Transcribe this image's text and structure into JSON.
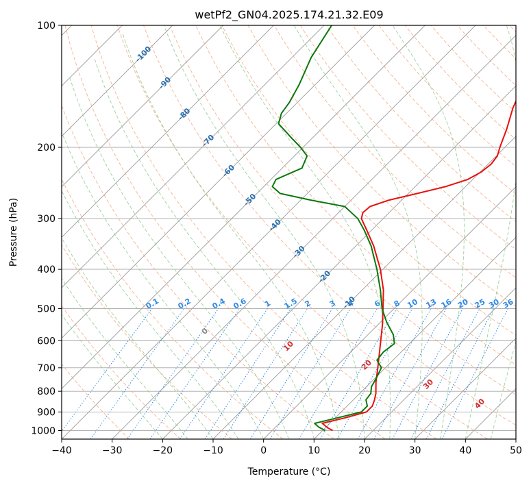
{
  "chart_data": {
    "type": "line",
    "title": "wetPf2_GN04.2025.174.21.32.E09",
    "xlabel": "Temperature (°C)",
    "ylabel": "Pressure (hPa)",
    "xlim": [
      -40,
      50
    ],
    "ylim": [
      1050,
      100
    ],
    "y_scale": "log",
    "skew": "skew-T (isotherms slanted)",
    "grid": true,
    "x_ticks": [
      -40,
      -30,
      -20,
      -10,
      0,
      10,
      20,
      30,
      40,
      50
    ],
    "x_tick_labels": [
      "−40",
      "−30",
      "−20",
      "−10",
      "0",
      "10",
      "20",
      "30",
      "40",
      "50"
    ],
    "y_ticks": [
      100,
      200,
      300,
      400,
      500,
      600,
      700,
      800,
      900,
      1000
    ],
    "y_tick_labels": [
      "100",
      "200",
      "300",
      "400",
      "500",
      "600",
      "700",
      "800",
      "900",
      "1000"
    ],
    "isotherm_labels": [
      {
        "text": "-100",
        "t": -100,
        "p": 118
      },
      {
        "text": "-90",
        "t": -90,
        "p": 139
      },
      {
        "text": "-80",
        "t": -80,
        "p": 166
      },
      {
        "text": "-70",
        "t": -70,
        "p": 193
      },
      {
        "text": "-60",
        "t": -60,
        "p": 229
      },
      {
        "text": "-50",
        "t": -50,
        "p": 270
      },
      {
        "text": "-40",
        "t": -40,
        "p": 312
      },
      {
        "text": "-30",
        "t": -30,
        "p": 363
      },
      {
        "text": "-20",
        "t": -20,
        "p": 418
      },
      {
        "text": "-10",
        "t": -10,
        "p": 484
      }
    ],
    "mixing_ratio_labels": [
      "0.1",
      "0.2",
      "0.4",
      "0.6",
      "1",
      "1.5",
      "2",
      "3",
      "4",
      "6",
      "8",
      "10",
      "13",
      "16",
      "20",
      "25",
      "30",
      "36"
    ],
    "moist_adiabat_labels": [
      "0",
      "10",
      "20",
      "30",
      "40"
    ],
    "series": [
      {
        "name": "",
        "role": "temperature",
        "color": "#e8100c",
        "points": [
          {
            "p": 1000,
            "t": 12
          },
          {
            "p": 985,
            "t": 10.5
          },
          {
            "p": 960,
            "t": 8.5
          },
          {
            "p": 930,
            "t": 12
          },
          {
            "p": 900,
            "t": 15
          },
          {
            "p": 870,
            "t": 15
          },
          {
            "p": 840,
            "t": 14.2
          },
          {
            "p": 810,
            "t": 13.2
          },
          {
            "p": 760,
            "t": 11
          },
          {
            "p": 700,
            "t": 8.5
          },
          {
            "p": 650,
            "t": 6.2
          },
          {
            "p": 600,
            "t": 3.7
          },
          {
            "p": 550,
            "t": 1
          },
          {
            "p": 500,
            "t": -2.2
          },
          {
            "p": 450,
            "t": -5.8
          },
          {
            "p": 400,
            "t": -10.5
          },
          {
            "p": 350,
            "t": -16.5
          },
          {
            "p": 320,
            "t": -21
          },
          {
            "p": 300,
            "t": -24.3
          },
          {
            "p": 290,
            "t": -25.2
          },
          {
            "p": 280,
            "t": -25
          },
          {
            "p": 270,
            "t": -22.5
          },
          {
            "p": 260,
            "t": -18.2
          },
          {
            "p": 250,
            "t": -14
          },
          {
            "p": 240,
            "t": -11
          },
          {
            "p": 230,
            "t": -9.8
          },
          {
            "p": 220,
            "t": -9.4
          },
          {
            "p": 210,
            "t": -9.8
          },
          {
            "p": 200,
            "t": -11
          },
          {
            "p": 180,
            "t": -13.3
          },
          {
            "p": 160,
            "t": -16.2
          },
          {
            "p": 140,
            "t": -18.8
          },
          {
            "p": 120,
            "t": -21.7
          },
          {
            "p": 100,
            "t": -24.1
          }
        ]
      },
      {
        "name": "",
        "role": "dewpoint",
        "color": "#0a780a",
        "points": [
          {
            "p": 1000,
            "t": 10.5
          },
          {
            "p": 980,
            "t": 8.5
          },
          {
            "p": 960,
            "t": 7
          },
          {
            "p": 930,
            "t": 10.5
          },
          {
            "p": 900,
            "t": 14
          },
          {
            "p": 870,
            "t": 14
          },
          {
            "p": 840,
            "t": 12.5
          },
          {
            "p": 810,
            "t": 12.2
          },
          {
            "p": 780,
            "t": 11
          },
          {
            "p": 740,
            "t": 10.2
          },
          {
            "p": 700,
            "t": 9.2
          },
          {
            "p": 670,
            "t": 6.8
          },
          {
            "p": 640,
            "t": 6.5
          },
          {
            "p": 610,
            "t": 7
          },
          {
            "p": 580,
            "t": 5
          },
          {
            "p": 540,
            "t": 1.2
          },
          {
            "p": 500,
            "t": -2.4
          },
          {
            "p": 450,
            "t": -6.4
          },
          {
            "p": 400,
            "t": -11.2
          },
          {
            "p": 350,
            "t": -17
          },
          {
            "p": 320,
            "t": -21.5
          },
          {
            "p": 300,
            "t": -25
          },
          {
            "p": 280,
            "t": -30
          },
          {
            "p": 270,
            "t": -38
          },
          {
            "p": 260,
            "t": -45.4
          },
          {
            "p": 250,
            "t": -48.3
          },
          {
            "p": 240,
            "t": -49
          },
          {
            "p": 225,
            "t": -46.1
          },
          {
            "p": 210,
            "t": -47.5
          },
          {
            "p": 200,
            "t": -50.5
          },
          {
            "p": 190,
            "t": -54
          },
          {
            "p": 175,
            "t": -59.5
          },
          {
            "p": 165,
            "t": -61
          },
          {
            "p": 155,
            "t": -61.6
          },
          {
            "p": 140,
            "t": -63.2
          },
          {
            "p": 120,
            "t": -66.2
          },
          {
            "p": 100,
            "t": -68.5
          }
        ]
      }
    ]
  },
  "colors": {
    "isotherm": "#9a9a9a",
    "isobar": "#a8a8a8",
    "dry_adiabat": "#f4a47c",
    "moist_adiabat": "#8cc88c",
    "mixing_ratio": "#2e8ae6",
    "isotherm_label": "#2a6fad",
    "mixing_label": "#2e8ae6",
    "moist_label": "#d32d2d"
  }
}
